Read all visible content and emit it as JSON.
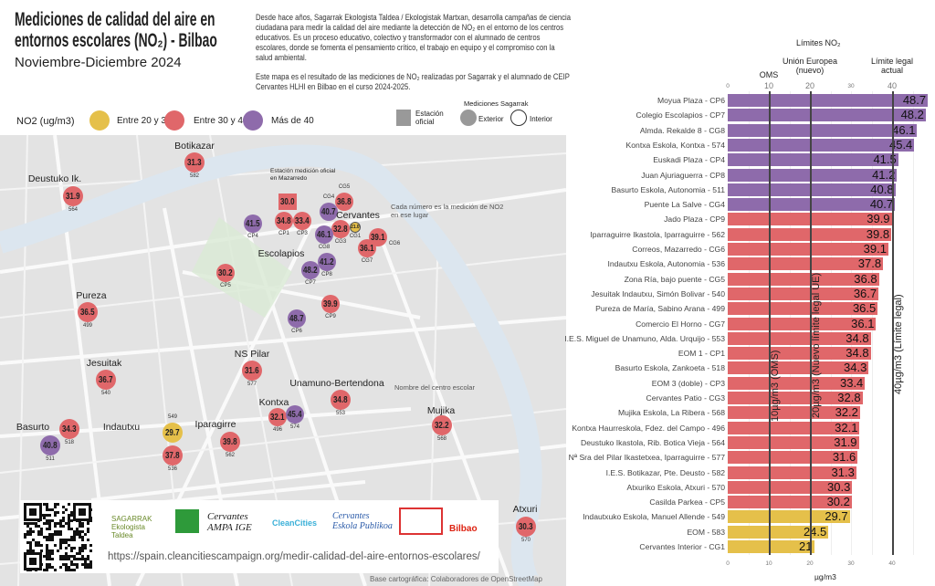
{
  "header": {
    "title": "Mediciones de calidad del aire en entornos escolares (NO₂) - Bilbao",
    "subtitle": "Noviembre-Diciembre 2024",
    "description": [
      "Desde hace años, Sagarrak Ekologista Taldea / Ekologistak Martxan, desarrolla campañas de ciencia ciudadana para medir la calidad del aire mediante la detección de NO₂ en el entorno de los centros educativos. Es  un proceso educativo, colectivo y transformador con el alumnado de centros escolares, donde se fomenta el pensamiento crítico, el trabajo en equipo y el compromiso con la salud ambiental.",
      "Este mapa es el resultado de las mediciones de NO₂ realizadas por Sagarrak y el alumnado de CEIP Cervantes HLHI en Bilbao en el curso 2024-2025."
    ]
  },
  "legend": {
    "title": "NO2 (ug/m3)",
    "items": [
      {
        "label": "Entre 20 y 30",
        "color": "#e5c04a"
      },
      {
        "label": "Entre 30 y 40",
        "color": "#e0676a"
      },
      {
        "label": "Más de 40",
        "color": "#8e6bab"
      }
    ],
    "station": "Estación oficial",
    "measurements_title": "Mediciones Sagarrak",
    "exterior": "Exterior",
    "interior": "Interior"
  },
  "map": {
    "annotations": {
      "number": "Cada número es la medición de NO2 en ese lugar",
      "school": "Nombre del centro escolar",
      "station": "Estación medición oficial en Mazarredo"
    },
    "place_labels": [
      "Botikazar",
      "Deustuko Ik.",
      "Cervantes",
      "Escolapios",
      "Pureza",
      "Jesuitak",
      "NS Pilar",
      "Unamuno-Bertendona",
      "Kontxa",
      "Mujika",
      "Basurto",
      "Indautxu",
      "Iparagirre",
      "Atxuri"
    ],
    "markers": [
      {
        "value": "31.3",
        "code": "582"
      },
      {
        "value": "31.9",
        "code": "564"
      },
      {
        "value": "30.0",
        "code": ""
      },
      {
        "value": "36.8",
        "code": "CG5"
      },
      {
        "value": "40.7",
        "code": "CG4"
      },
      {
        "value": "41.5",
        "code": "CP4"
      },
      {
        "value": "34.8",
        "code": "CP1"
      },
      {
        "value": "33.4",
        "code": "CP3"
      },
      {
        "value": "32.8",
        "code": "CG3"
      },
      {
        "value": "21.0",
        "code": "CG1"
      },
      {
        "value": "46.1",
        "code": "CG8"
      },
      {
        "value": "39.1",
        "code": "CG6"
      },
      {
        "value": "36.1",
        "code": "CG7"
      },
      {
        "value": "41.2",
        "code": "CP8"
      },
      {
        "value": "48.2",
        "code": "CP7"
      },
      {
        "value": "30.2",
        "code": "CP5"
      },
      {
        "value": "39.9",
        "code": "CP9"
      },
      {
        "value": "48.7",
        "code": "CP6"
      },
      {
        "value": "36.5",
        "code": "499"
      },
      {
        "value": "36.7",
        "code": "540"
      },
      {
        "value": "31.6",
        "code": "577"
      },
      {
        "value": "34.8",
        "code": "553"
      },
      {
        "value": "32.1",
        "code": "496"
      },
      {
        "value": "45.4",
        "code": "574"
      },
      {
        "value": "32.2",
        "code": "568"
      },
      {
        "value": "34.3",
        "code": "518"
      },
      {
        "value": "40.8",
        "code": "511"
      },
      {
        "value": "29.7",
        "code": "549"
      },
      {
        "value": "37.8",
        "code": "536"
      },
      {
        "value": "39.8",
        "code": "562"
      },
      {
        "value": "30.3",
        "code": "570"
      }
    ],
    "url": "https://spain.cleancitiescampaign.org/medir-calidad-del-aire-entornos-escolares/",
    "credit": "Base cartográfica: Colaboradores de OpenStreetMap",
    "logos": [
      "SAGARRAK Ekologista Taldea",
      "Ekologistak Martxan",
      "Cervantes AMPA IGE",
      "CleanCities",
      "Cervantes Eskola Publikoa",
      "Bilbao"
    ]
  },
  "chart_data": {
    "type": "bar",
    "orientation": "horizontal",
    "title": "Límites NO₂",
    "xlabel": "µg/m3",
    "xlim": [
      0,
      48
    ],
    "xticks": [
      0,
      10,
      20,
      30,
      40
    ],
    "reference_lines": [
      {
        "value": 10,
        "top_label": "OMS",
        "label": "10µg/m3 (OMS)"
      },
      {
        "value": 20,
        "top_label": "Unión Europea (nuevo)",
        "label": "20µg/m3 (Nuevo límite legal UE)"
      },
      {
        "value": 40,
        "top_label": "Límite legal actual",
        "label": "40µg/m3 (Límite legal)"
      }
    ],
    "colors": {
      "over40": "#8e6bab",
      "30to40": "#e0676a",
      "20to30": "#e5c04a"
    },
    "categories": [
      "Moyua Plaza - CP6",
      "Colegio Escolapios - CP7",
      "Almda. Rekalde 8 - CG8",
      "Kontxa Eskola, Kontxa - 574",
      "Euskadi Plaza - CP4",
      "Juan Ajuriaguerra - CP8",
      "Basurto Eskola, Autonomia - 511",
      "Puente La Salve - CG4",
      "Jado Plaza - CP9",
      "Iparraguirre Ikastola, Iparraguirre - 562",
      "Correos, Mazarredo - CG6",
      "Indautxu Eskola, Autonomia - 536",
      "Zona Ría, bajo puente - CG5",
      "Jesuitak Indautxu, Simón Bolivar - 540",
      "Pureza de María, Sabino Arana - 499",
      "Comercio El Horno - CG7",
      "I.E.S. Miguel de Unamuno, Alda. Urquijo - 553",
      "EOM 1 - CP1",
      "Basurto Eskola, Zankoeta - 518",
      "EOM 3 (doble) - CP3",
      "Cervantes Patio - CG3",
      "Mujika Eskola, La Ribera - 568",
      "Kontxa Haurreskola, Fdez. del Campo - 496",
      "Deustuko Ikastola, Rib. Botica Vieja - 564",
      "Nª Sra del Pilar Ikastetxea, Iparraguirre - 577",
      "I.E.S. Botikazar, Pte. Deusto - 582",
      "Atxuriko Eskola, Atxuri - 570",
      "Casilda Parkea - CP5",
      "Indautxuko Eskola, Manuel Allende - 549",
      "EOM - 583",
      "Cervantes Interior - CG1"
    ],
    "values": [
      48.7,
      48.2,
      46.1,
      45.4,
      41.5,
      41.2,
      40.8,
      40.7,
      39.9,
      39.8,
      39.1,
      37.8,
      36.8,
      36.7,
      36.5,
      36.1,
      34.8,
      34.8,
      34.3,
      33.4,
      32.8,
      32.2,
      32.1,
      31.9,
      31.6,
      31.3,
      30.3,
      30.2,
      29.7,
      24.5,
      21
    ],
    "value_labels": [
      "48.7",
      "48.2",
      "46.1",
      "45.4",
      "41.5",
      "41.2",
      "40.8",
      "40.7",
      "39.9",
      "39.8",
      "39.1",
      "37.8",
      "36.8",
      "36.7",
      "36.5",
      "36.1",
      "34.8",
      "34.8",
      "34.3",
      "33.4",
      "32.8",
      "32.2",
      "32.1",
      "31.9",
      "31.6",
      "31.3",
      "30.3",
      "30.2",
      "29.7",
      "24.5",
      "21"
    ]
  }
}
